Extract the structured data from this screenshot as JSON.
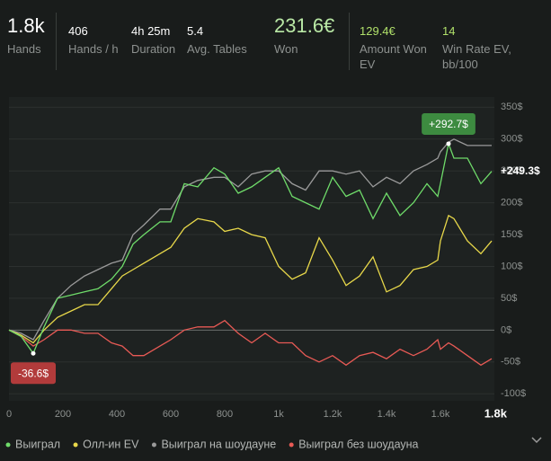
{
  "header": {
    "stats": [
      {
        "value": "1.8k",
        "label": "Hands"
      },
      {
        "value": "406",
        "label": "Hands / h"
      },
      {
        "value": "4h 25m",
        "label": "Duration"
      },
      {
        "value": "5.4",
        "label": "Avg. Tables"
      },
      {
        "value": "231.6€",
        "label": "Won"
      },
      {
        "value": "129.4€",
        "label": "Amount Won EV"
      },
      {
        "value": "14",
        "label": "Win Rate EV, bb/100"
      }
    ]
  },
  "chart_data": {
    "type": "line",
    "x": [
      0,
      45,
      90,
      130,
      180,
      230,
      280,
      330,
      380,
      420,
      460,
      500,
      560,
      600,
      650,
      700,
      760,
      800,
      850,
      900,
      950,
      1000,
      1050,
      1100,
      1150,
      1200,
      1250,
      1300,
      1350,
      1400,
      1450,
      1500,
      1550,
      1590,
      1600,
      1630,
      1650,
      1700,
      1750,
      1790
    ],
    "series": [
      {
        "name": "Выиграл",
        "color": "#6fdc6a",
        "values": [
          0,
          -10,
          -36.6,
          5,
          50,
          55,
          60,
          65,
          80,
          100,
          135,
          150,
          170,
          170,
          230,
          225,
          255,
          245,
          215,
          225,
          240,
          255,
          210,
          200,
          190,
          240,
          210,
          220,
          175,
          215,
          180,
          200,
          230,
          210,
          230,
          292.7,
          270,
          270,
          230,
          249.3
        ]
      },
      {
        "name": "Олл-ин EV",
        "color": "#e8d84a",
        "values": [
          0,
          -8,
          -20,
          0,
          20,
          30,
          40,
          40,
          65,
          85,
          95,
          105,
          120,
          130,
          160,
          175,
          170,
          155,
          160,
          150,
          145,
          100,
          80,
          90,
          145,
          110,
          70,
          85,
          115,
          60,
          70,
          95,
          100,
          110,
          140,
          180,
          175,
          140,
          120,
          140
        ]
      },
      {
        "name": "Выиграл на шоудауне",
        "color": "#9a9a9a",
        "values": [
          0,
          -5,
          -15,
          15,
          50,
          70,
          85,
          95,
          105,
          110,
          150,
          165,
          190,
          190,
          225,
          235,
          240,
          240,
          225,
          245,
          250,
          250,
          230,
          220,
          250,
          250,
          245,
          250,
          225,
          240,
          230,
          250,
          260,
          270,
          280,
          295,
          300,
          290,
          290,
          290
        ]
      },
      {
        "name": "Выиграл без шоудауна",
        "color": "#e85a55",
        "values": [
          0,
          -10,
          -25,
          -15,
          0,
          0,
          -5,
          -5,
          -20,
          -25,
          -40,
          -40,
          -25,
          -15,
          0,
          5,
          5,
          15,
          -5,
          -20,
          -5,
          -20,
          -20,
          -40,
          -50,
          -40,
          -55,
          -40,
          -35,
          -45,
          -30,
          -40,
          -30,
          -15,
          -30,
          -20,
          -25,
          -40,
          -55,
          -45
        ]
      }
    ],
    "xlim": [
      0,
      1800
    ],
    "ylim": [
      -111,
      366
    ],
    "xticks": [
      0,
      200,
      400,
      600,
      800,
      {
        "value": 1000,
        "label": "1k"
      },
      {
        "value": 1200,
        "label": "1.2k"
      },
      {
        "value": 1400,
        "label": "1.4k"
      },
      {
        "value": 1600,
        "label": "1.6k"
      },
      {
        "value": 1800,
        "label": "1.8k"
      }
    ],
    "yticks": [
      {
        "value": -100,
        "label": "-100$"
      },
      {
        "value": -50,
        "label": "-50$"
      },
      {
        "value": 0,
        "label": "0$"
      },
      {
        "value": 50,
        "label": "50$"
      },
      {
        "value": 100,
        "label": "100$"
      },
      {
        "value": 150,
        "label": "150$"
      },
      {
        "value": 200,
        "label": "200$"
      },
      {
        "value": 250,
        "label": "250$"
      },
      {
        "value": 300,
        "label": "300$"
      },
      {
        "value": 350,
        "label": "350$"
      }
    ],
    "grid": true,
    "max_label": {
      "x": 1630,
      "value": 292.7,
      "label": "+292.7$",
      "color": "#3d8b40"
    },
    "last_label": {
      "x": 1790,
      "value": 249.3,
      "label": "+249.3$"
    },
    "min_label": {
      "x": 90,
      "value": -36.6,
      "label": "-36.6$",
      "color": "#b23b3b"
    }
  }
}
